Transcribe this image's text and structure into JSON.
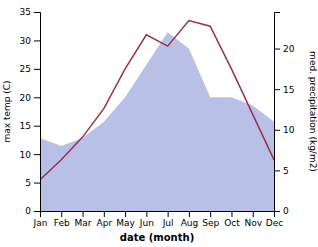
{
  "chart_data": {
    "type": "line",
    "xlabel": "date (month)",
    "ylabel": "max temp (C)",
    "y2label": "med. precipitation (kg/m2)",
    "categories": [
      "Jan",
      "Feb",
      "Mar",
      "Apr",
      "May",
      "Jun",
      "Jul",
      "Aug",
      "Sep",
      "Oct",
      "Nov",
      "Dec"
    ],
    "series": [
      {
        "type": "area",
        "axis": "y2",
        "color": "#b8c0e8",
        "values": [
          9.0,
          8.0,
          9.0,
          11.0,
          14.0,
          18.0,
          22.0,
          20.0,
          14.0,
          14.0,
          13.0,
          11.0
        ]
      },
      {
        "type": "line",
        "color": "#993344",
        "values": [
          5.5,
          9.0,
          13.0,
          18.0,
          25.0,
          31.0,
          29.0,
          33.5,
          32.5,
          25.0,
          17.0,
          9.0
        ]
      }
    ],
    "ylim": [
      0,
      35
    ],
    "yticks": [
      0,
      5,
      10,
      15,
      20,
      25,
      30,
      35
    ],
    "y2lim": [
      0,
      24.5
    ],
    "y2ticks": [
      0,
      5,
      10,
      15,
      20
    ],
    "grid": false
  }
}
